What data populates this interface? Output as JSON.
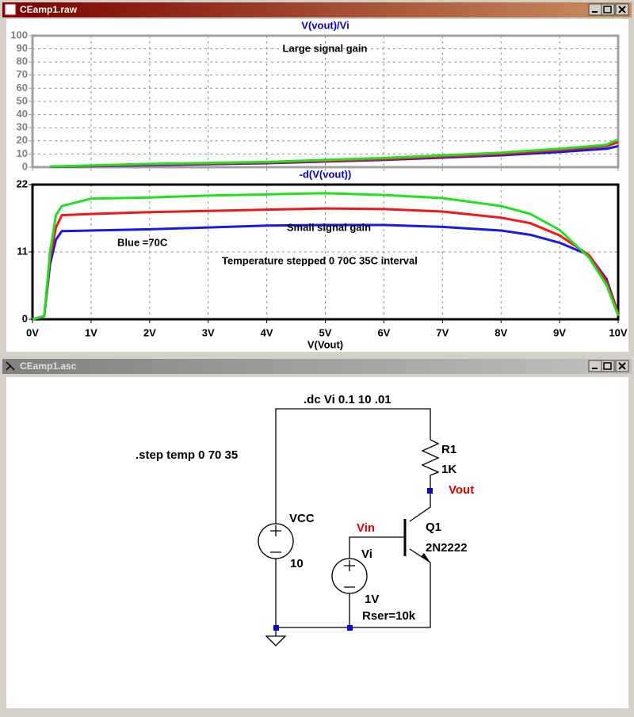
{
  "windows": [
    {
      "title": "CEamp1.raw"
    },
    {
      "title": "CEamp1.asc"
    }
  ],
  "chart_data": [
    {
      "type": "line",
      "title": "V(vout)/Vi",
      "annotations": [
        "Large signal gain"
      ],
      "xlim": [
        0,
        10
      ],
      "xticks": [
        0,
        1,
        2,
        3,
        4,
        5,
        6,
        7,
        8,
        9,
        10
      ],
      "show_xtick_labels": false,
      "ylim": [
        0,
        100
      ],
      "yticks": [
        0,
        10,
        20,
        30,
        40,
        50,
        60,
        70,
        80,
        90,
        100
      ],
      "grid": true,
      "frame_color": "#a0a0a0",
      "x": [
        0.3,
        2,
        4,
        6,
        8,
        9,
        9.8,
        10
      ],
      "series": [
        {
          "color": "#1818e8",
          "values": [
            0.3,
            1.5,
            3,
            5.5,
            9,
            11.5,
            14,
            16
          ]
        },
        {
          "color": "#f01818",
          "values": [
            0.4,
            2,
            3.5,
            6,
            10,
            13,
            16,
            19
          ]
        },
        {
          "color": "#20e020",
          "values": [
            0.5,
            2.5,
            4,
            7,
            11,
            14,
            17,
            21
          ]
        }
      ]
    },
    {
      "type": "line",
      "title": "-d(V(vout))",
      "annotations": [
        "Small signal gain",
        "Blue =70C",
        "Temperature stepped 0 70C 35C interval"
      ],
      "xlabel": "V(Vout)",
      "xlim": [
        0,
        10
      ],
      "xticks": [
        {
          "value": 0,
          "label": "0V"
        },
        {
          "value": 1,
          "label": "1V"
        },
        {
          "value": 2,
          "label": "2V"
        },
        {
          "value": 3,
          "label": "3V"
        },
        {
          "value": 4,
          "label": "4V"
        },
        {
          "value": 5,
          "label": "5V"
        },
        {
          "value": 6,
          "label": "6V"
        },
        {
          "value": 7,
          "label": "7V"
        },
        {
          "value": 8,
          "label": "8V"
        },
        {
          "value": 9,
          "label": "9V"
        },
        {
          "value": 10,
          "label": "10V"
        }
      ],
      "show_xtick_labels": true,
      "ylim": [
        0,
        22
      ],
      "yticks": [
        0,
        11,
        22
      ],
      "grid": true,
      "frame_color": "#000000",
      "x": [
        0,
        0.2,
        0.3,
        0.4,
        0.5,
        1,
        2,
        3,
        4,
        5,
        6,
        7,
        8,
        8.5,
        9,
        9.5,
        9.8,
        10
      ],
      "series": [
        {
          "color": "#1818e8",
          "values": [
            0,
            0.5,
            9,
            13,
            14.4,
            14.5,
            14.7,
            15,
            15.3,
            15.4,
            15.4,
            15.1,
            14.5,
            13.8,
            12.5,
            10.5,
            6.6,
            1
          ]
        },
        {
          "color": "#f01818",
          "values": [
            0,
            0.5,
            10,
            15,
            17,
            17.2,
            17.5,
            17.7,
            17.9,
            18.1,
            18,
            17.6,
            16.6,
            15.7,
            13.7,
            10.5,
            6.2,
            1
          ]
        },
        {
          "color": "#20e020",
          "values": [
            0,
            0.5,
            11,
            17,
            18.5,
            19.7,
            19.9,
            20.2,
            20.4,
            20.6,
            20.3,
            19.8,
            18.5,
            17.2,
            14.6,
            10.1,
            5.6,
            0.6
          ]
        }
      ]
    }
  ],
  "schematic": {
    "directives": [
      ".dc Vi 0.1 10 .01",
      ".step temp 0 70 35"
    ],
    "components": [
      {
        "name": "R1",
        "value": "1K"
      },
      {
        "name": "VCC",
        "value": "10"
      },
      {
        "name": "Q1",
        "value": "2N2222"
      },
      {
        "name": "Vi",
        "value": "1V",
        "extra": "Rser=10k"
      }
    ],
    "net_labels": [
      "Vout",
      "Vin"
    ]
  }
}
